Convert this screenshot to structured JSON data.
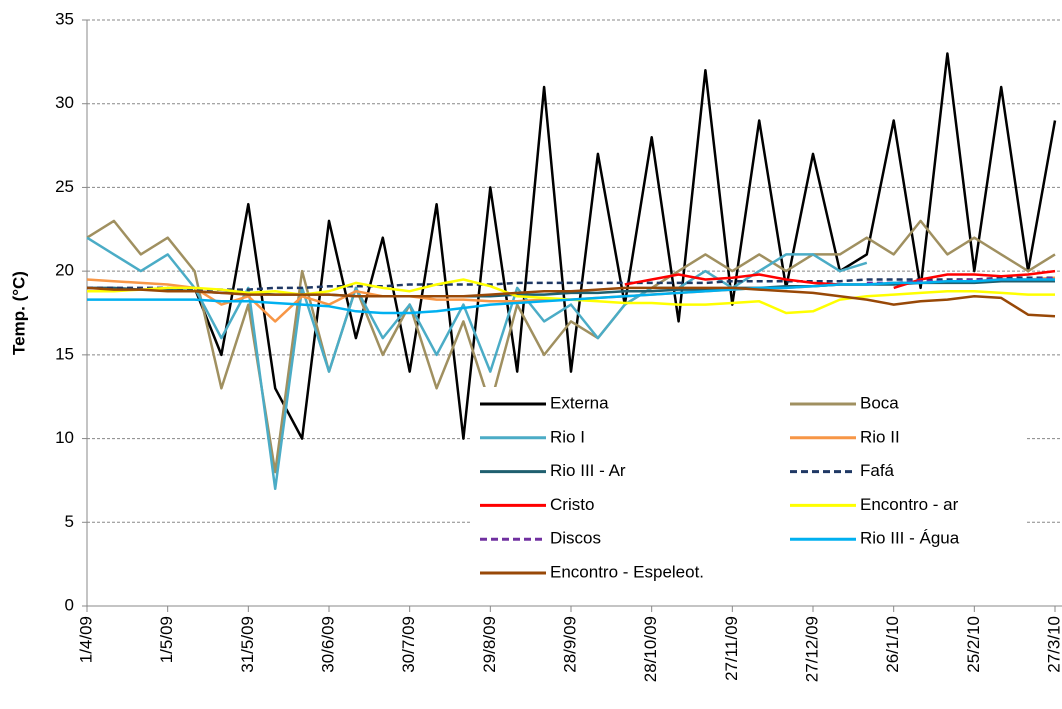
{
  "chart_data": {
    "type": "line",
    "y_label": "Temp. (°C)",
    "x": [
      "1/4/09",
      "11/4/09",
      "21/4/09",
      "1/5/09",
      "11/5/09",
      "21/5/09",
      "31/5/09",
      "10/6/09",
      "20/6/09",
      "30/6/09",
      "10/7/09",
      "20/7/09",
      "30/7/09",
      "9/8/09",
      "19/8/09",
      "29/8/09",
      "8/9/09",
      "18/9/09",
      "28/9/09",
      "8/10/09",
      "18/10/09",
      "28/10/09",
      "7/11/09",
      "17/11/09",
      "27/11/09",
      "7/12/09",
      "17/12/09",
      "27/12/09",
      "6/1/10",
      "16/1/10",
      "26/1/10",
      "5/2/10",
      "15/2/10",
      "25/2/10",
      "7/3/10",
      "17/3/10",
      "27/3/10"
    ],
    "xlim": [
      "1/4/09",
      "27/3/10"
    ],
    "xticks": [
      "1/4/09",
      "1/5/09",
      "31/5/09",
      "30/6/09",
      "30/7/09",
      "29/8/09",
      "28/9/09",
      "28/10/09",
      "27/11/09",
      "27/12/09",
      "26/1/10",
      "25/2/10",
      "27/3/10"
    ],
    "ylim": [
      0,
      35
    ],
    "yticks": [
      0,
      5,
      10,
      15,
      20,
      25,
      30,
      35
    ],
    "grid": true,
    "series": [
      {
        "name": "Externa",
        "color": "#000000",
        "dash": false,
        "values": [
          null,
          null,
          null,
          null,
          19,
          15,
          24,
          13,
          10,
          23,
          16,
          22,
          14,
          24,
          10,
          25,
          14,
          31,
          14,
          27,
          18,
          28,
          17,
          32,
          18,
          29,
          19,
          27,
          20,
          21,
          29,
          19,
          33,
          20,
          31,
          20,
          29
        ]
      },
      {
        "name": "Boca",
        "color": "#a09060",
        "dash": false,
        "values": [
          22,
          23,
          21,
          22,
          20,
          13,
          18,
          8,
          20,
          14,
          19,
          15,
          18,
          13,
          17,
          12,
          18,
          15,
          17,
          16,
          18,
          19,
          20,
          21,
          20,
          21,
          20,
          21,
          21,
          22,
          21,
          23,
          21,
          22,
          21,
          20,
          21
        ]
      },
      {
        "name": "Rio I",
        "color": "#4bacc6",
        "dash": false,
        "values": [
          22,
          21,
          20,
          21,
          19,
          16,
          19,
          7,
          19,
          14,
          19,
          16,
          18,
          15,
          18,
          14,
          19,
          17,
          18,
          16,
          18,
          19,
          19,
          20,
          19,
          20,
          21,
          21,
          20,
          20.5,
          null,
          null,
          null,
          null,
          null,
          null,
          null
        ]
      },
      {
        "name": "Rio II",
        "color": "#f79646",
        "dash": false,
        "values": [
          19.5,
          19.4,
          19.3,
          19.2,
          19,
          18,
          18.5,
          17,
          18.5,
          18,
          18.8,
          18.5,
          18.5,
          18.3,
          18.3,
          18.2,
          18.2,
          18.3,
          18.3,
          18.4,
          18.5,
          18.6,
          18.7,
          18.8,
          18.9,
          19,
          19,
          19.1,
          19.2,
          19.2,
          19.3,
          19.3,
          19.4,
          19.4,
          19.5,
          19.5,
          19.6
        ]
      },
      {
        "name": "Rio III - Ar",
        "color": "#1f5f6f",
        "dash": false,
        "values": [
          19,
          19,
          18.9,
          18.9,
          18.8,
          18.7,
          18.7,
          18.6,
          18.6,
          18.6,
          18.5,
          18.5,
          18.5,
          18.5,
          18.5,
          18.5,
          18.6,
          18.6,
          18.7,
          18.7,
          18.8,
          18.8,
          18.9,
          18.9,
          19,
          19,
          19.1,
          19.1,
          19.2,
          19.2,
          19.2,
          19.3,
          19.3,
          19.3,
          19.4,
          19.4,
          19.4
        ]
      },
      {
        "name": "Fafá",
        "color": "#1f3864",
        "dash": true,
        "values": [
          19,
          19,
          19,
          19,
          18.9,
          18.9,
          18.9,
          19,
          19,
          19.1,
          19.1,
          19.1,
          19.2,
          19.2,
          19.2,
          19.2,
          19.3,
          19.3,
          19.3,
          19.3,
          19.3,
          19.3,
          19.3,
          19.3,
          19.4,
          19.4,
          19.4,
          19.4,
          19.4,
          19.5,
          19.5,
          19.5,
          19.5,
          19.5,
          19.6,
          19.6,
          19.6
        ]
      },
      {
        "name": "Cristo",
        "color": "#ff0000",
        "dash": false,
        "values": [
          null,
          null,
          null,
          null,
          null,
          null,
          null,
          null,
          null,
          null,
          null,
          null,
          null,
          null,
          null,
          null,
          null,
          null,
          null,
          null,
          19.2,
          19.5,
          19.8,
          19.5,
          19.6,
          19.8,
          19.5,
          19.3,
          19.2,
          null,
          19,
          19.5,
          19.8,
          19.8,
          19.7,
          19.8,
          20
        ]
      },
      {
        "name": "Encontro - ar",
        "color": "#ffff00",
        "dash": false,
        "values": [
          18.8,
          18.8,
          18.9,
          19,
          19,
          18.9,
          18.7,
          18.8,
          18.6,
          18.8,
          19.3,
          19,
          18.8,
          19.2,
          19.5,
          19.1,
          18.5,
          18.4,
          18.3,
          18.2,
          18.1,
          18.1,
          18,
          18,
          18.1,
          18.2,
          17.5,
          17.6,
          18.3,
          18.5,
          18.6,
          18.7,
          18.8,
          18.8,
          18.7,
          18.6,
          18.6
        ]
      },
      {
        "name": "Discos",
        "color": "#7030a0",
        "dash": true,
        "values": [
          null,
          null,
          null,
          null,
          null,
          null,
          null,
          null,
          null,
          null,
          null,
          null,
          null,
          null,
          null,
          null,
          null,
          null,
          null,
          null,
          null,
          null,
          null,
          null,
          null,
          null,
          null,
          null,
          null,
          19.3,
          19.3,
          19.4,
          19.4,
          19.5,
          19.5,
          19.5,
          19.6
        ]
      },
      {
        "name": "Rio III - Água",
        "color": "#00b0f0",
        "dash": false,
        "values": [
          18.3,
          18.3,
          18.3,
          18.3,
          18.3,
          18.2,
          18.2,
          18.1,
          18,
          17.9,
          17.6,
          17.5,
          17.5,
          17.6,
          17.8,
          18,
          18.1,
          18.2,
          18.3,
          18.4,
          18.5,
          18.6,
          18.7,
          18.8,
          18.9,
          19,
          19,
          19.1,
          19.2,
          19.2,
          19.3,
          19.3,
          19.4,
          19.4,
          19.5,
          19.5,
          19.5
        ]
      },
      {
        "name": "Encontro - Espeleot.",
        "color": "#984807",
        "dash": false,
        "values": [
          19,
          18.9,
          18.9,
          18.8,
          18.8,
          18.7,
          18.6,
          18.6,
          18.6,
          18.6,
          18.5,
          18.5,
          18.5,
          18.5,
          18.5,
          18.6,
          18.7,
          18.8,
          18.8,
          18.9,
          19,
          19,
          19,
          19,
          19,
          18.9,
          18.8,
          18.7,
          18.5,
          18.3,
          18,
          18.2,
          18.3,
          18.5,
          18.4,
          17.4,
          17.3
        ]
      }
    ]
  }
}
